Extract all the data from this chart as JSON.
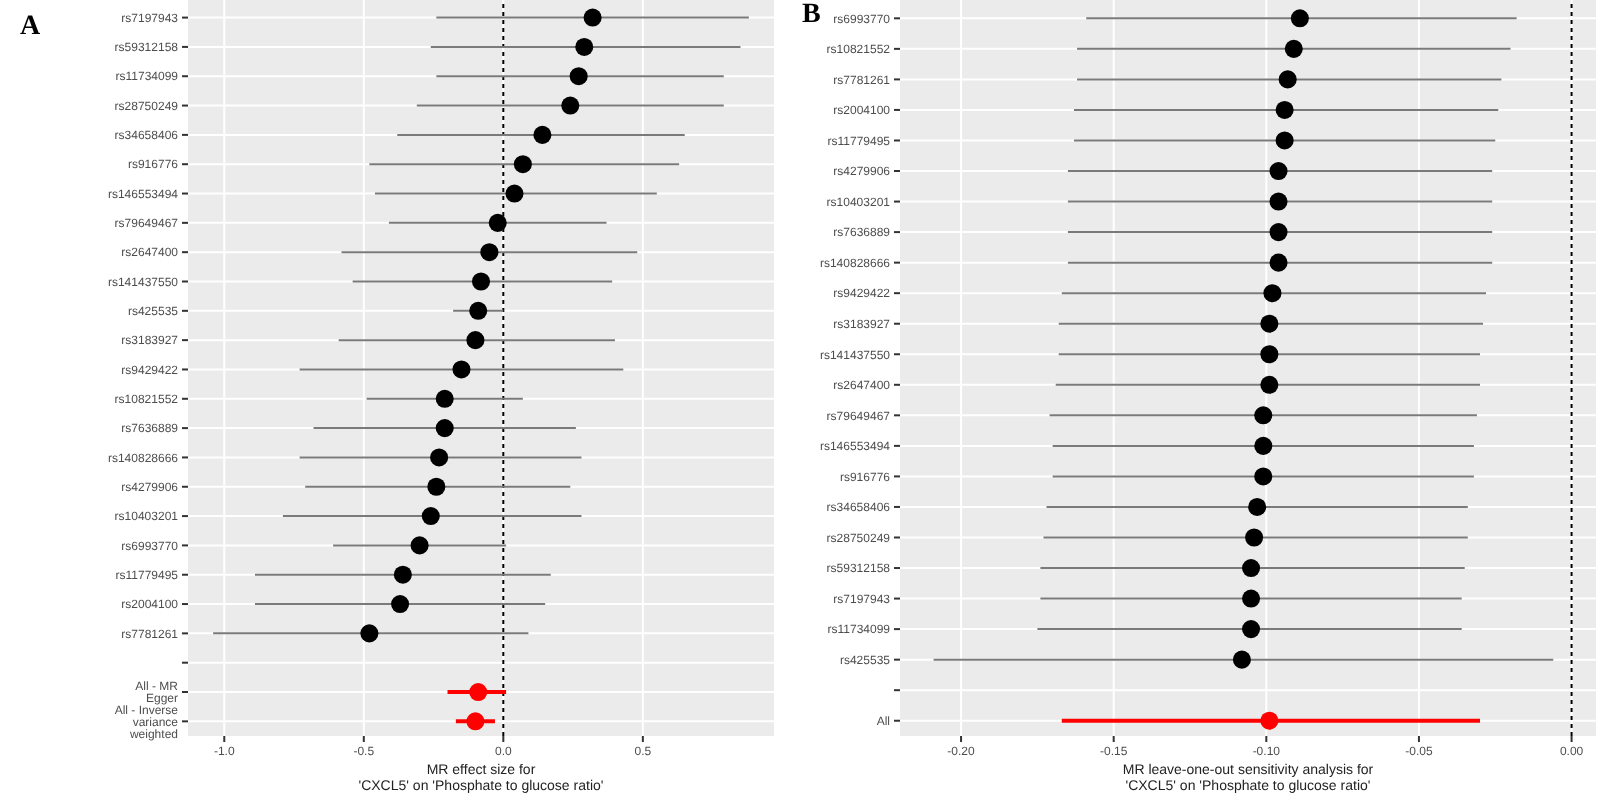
{
  "chart_data": [
    {
      "type": "scatter",
      "orientation": "horizontal",
      "title": "A",
      "xlabel": "MR effect size for\n'CXCL5' on 'Phosphate to glucose ratio'",
      "categories": [
        "rs7197943",
        "rs59312158",
        "rs11734099",
        "rs28750249",
        "rs34658406",
        "rs916776",
        "rs146553494",
        "rs79649467",
        "rs2647400",
        "rs141437550",
        "rs425535",
        "rs3183927",
        "rs9429422",
        "rs10821552",
        "rs7636889",
        "rs140828666",
        "rs4279906",
        "rs10403201",
        "rs6993770",
        "rs11779495",
        "rs2004100",
        "rs7781261",
        null,
        "All - MR Egger",
        "All - Inverse variance weighted"
      ],
      "series": [
        {
          "color": "#000000",
          "values": [
            0.32,
            0.29,
            0.27,
            0.24,
            0.14,
            0.07,
            0.04,
            -0.02,
            -0.05,
            -0.08,
            -0.09,
            -0.1,
            -0.15,
            -0.21,
            -0.21,
            -0.23,
            -0.24,
            -0.26,
            -0.3,
            -0.36,
            -0.37,
            -0.48,
            null,
            null,
            null
          ],
          "errors": [
            [
              -0.24,
              0.88
            ],
            [
              -0.26,
              0.85
            ],
            [
              -0.24,
              0.79
            ],
            [
              -0.31,
              0.79
            ],
            [
              -0.38,
              0.65
            ],
            [
              -0.48,
              0.63
            ],
            [
              -0.46,
              0.55
            ],
            [
              -0.41,
              0.37
            ],
            [
              -0.58,
              0.48
            ],
            [
              -0.54,
              0.39
            ],
            [
              -0.18,
              0.0
            ],
            [
              -0.59,
              0.4
            ],
            [
              -0.73,
              0.43
            ],
            [
              -0.49,
              0.07
            ],
            [
              -0.68,
              0.26
            ],
            [
              -0.73,
              0.28
            ],
            [
              -0.71,
              0.24
            ],
            [
              -0.79,
              0.28
            ],
            [
              -0.61,
              0.01
            ],
            [
              -0.89,
              0.17
            ],
            [
              -0.89,
              0.15
            ],
            [
              -1.04,
              0.09
            ],
            null,
            null,
            null
          ]
        },
        {
          "color": "#ff0000",
          "values": [
            null,
            null,
            null,
            null,
            null,
            null,
            null,
            null,
            null,
            null,
            null,
            null,
            null,
            null,
            null,
            null,
            null,
            null,
            null,
            null,
            null,
            null,
            null,
            -0.09,
            -0.1
          ],
          "errors": [
            null,
            null,
            null,
            null,
            null,
            null,
            null,
            null,
            null,
            null,
            null,
            null,
            null,
            null,
            null,
            null,
            null,
            null,
            null,
            null,
            null,
            null,
            null,
            [
              -0.2,
              0.01
            ],
            [
              -0.17,
              -0.03
            ]
          ]
        }
      ],
      "xlim": [
        -1.13,
        0.97
      ],
      "xticks": [
        {
          "value": -1,
          "label": "-1.0"
        },
        {
          "value": -0.5,
          "label": "-0.5"
        },
        {
          "value": 0,
          "label": "0.0"
        },
        {
          "value": 0.5,
          "label": "0.5"
        }
      ],
      "ref_lines": [
        {
          "axis": "x",
          "value": 0,
          "line_style": "dotted"
        }
      ],
      "grid": true,
      "marker": "circle"
    },
    {
      "type": "scatter",
      "orientation": "horizontal",
      "title": "B",
      "xlabel": "MR leave-one-out sensitivity analysis for\n'CXCL5' on 'Phosphate to glucose ratio'",
      "categories": [
        "rs6993770",
        "rs10821552",
        "rs7781261",
        "rs2004100",
        "rs11779495",
        "rs4279906",
        "rs10403201",
        "rs7636889",
        "rs140828666",
        "rs9429422",
        "rs3183927",
        "rs141437550",
        "rs2647400",
        "rs79649467",
        "rs146553494",
        "rs916776",
        "rs34658406",
        "rs28750249",
        "rs59312158",
        "rs7197943",
        "rs11734099",
        "rs425535",
        null,
        "All"
      ],
      "series": [
        {
          "color": "#000000",
          "values": [
            -0.089,
            -0.091,
            -0.093,
            -0.094,
            -0.094,
            -0.096,
            -0.096,
            -0.096,
            -0.096,
            -0.098,
            -0.099,
            -0.099,
            -0.099,
            -0.101,
            -0.101,
            -0.101,
            -0.103,
            -0.104,
            -0.105,
            -0.105,
            -0.105,
            -0.108,
            null,
            null
          ],
          "errors": [
            [
              -0.159,
              -0.018
            ],
            [
              -0.162,
              -0.02
            ],
            [
              -0.162,
              -0.023
            ],
            [
              -0.163,
              -0.024
            ],
            [
              -0.163,
              -0.025
            ],
            [
              -0.165,
              -0.026
            ],
            [
              -0.165,
              -0.026
            ],
            [
              -0.165,
              -0.026
            ],
            [
              -0.165,
              -0.026
            ],
            [
              -0.167,
              -0.028
            ],
            [
              -0.168,
              -0.029
            ],
            [
              -0.168,
              -0.03
            ],
            [
              -0.169,
              -0.03
            ],
            [
              -0.171,
              -0.031
            ],
            [
              -0.17,
              -0.032
            ],
            [
              -0.17,
              -0.032
            ],
            [
              -0.172,
              -0.034
            ],
            [
              -0.173,
              -0.034
            ],
            [
              -0.174,
              -0.035
            ],
            [
              -0.174,
              -0.036
            ],
            [
              -0.175,
              -0.036
            ],
            [
              -0.209,
              -0.006
            ],
            null,
            null
          ]
        },
        {
          "color": "#ff0000",
          "values": [
            null,
            null,
            null,
            null,
            null,
            null,
            null,
            null,
            null,
            null,
            null,
            null,
            null,
            null,
            null,
            null,
            null,
            null,
            null,
            null,
            null,
            null,
            null,
            -0.099
          ],
          "errors": [
            null,
            null,
            null,
            null,
            null,
            null,
            null,
            null,
            null,
            null,
            null,
            null,
            null,
            null,
            null,
            null,
            null,
            null,
            null,
            null,
            null,
            null,
            null,
            [
              -0.167,
              -0.03
            ]
          ]
        }
      ],
      "xlim": [
        -0.22,
        0.008
      ],
      "xticks": [
        {
          "value": -0.2,
          "label": "-0.20"
        },
        {
          "value": -0.15,
          "label": "-0.15"
        },
        {
          "value": -0.1,
          "label": "-0.10"
        },
        {
          "value": -0.05,
          "label": "-0.05"
        },
        {
          "value": 0,
          "label": "0.00"
        }
      ],
      "ref_lines": [
        {
          "axis": "x",
          "value": 0,
          "line_style": "dotted"
        }
      ],
      "grid": true,
      "marker": "circle"
    }
  ]
}
